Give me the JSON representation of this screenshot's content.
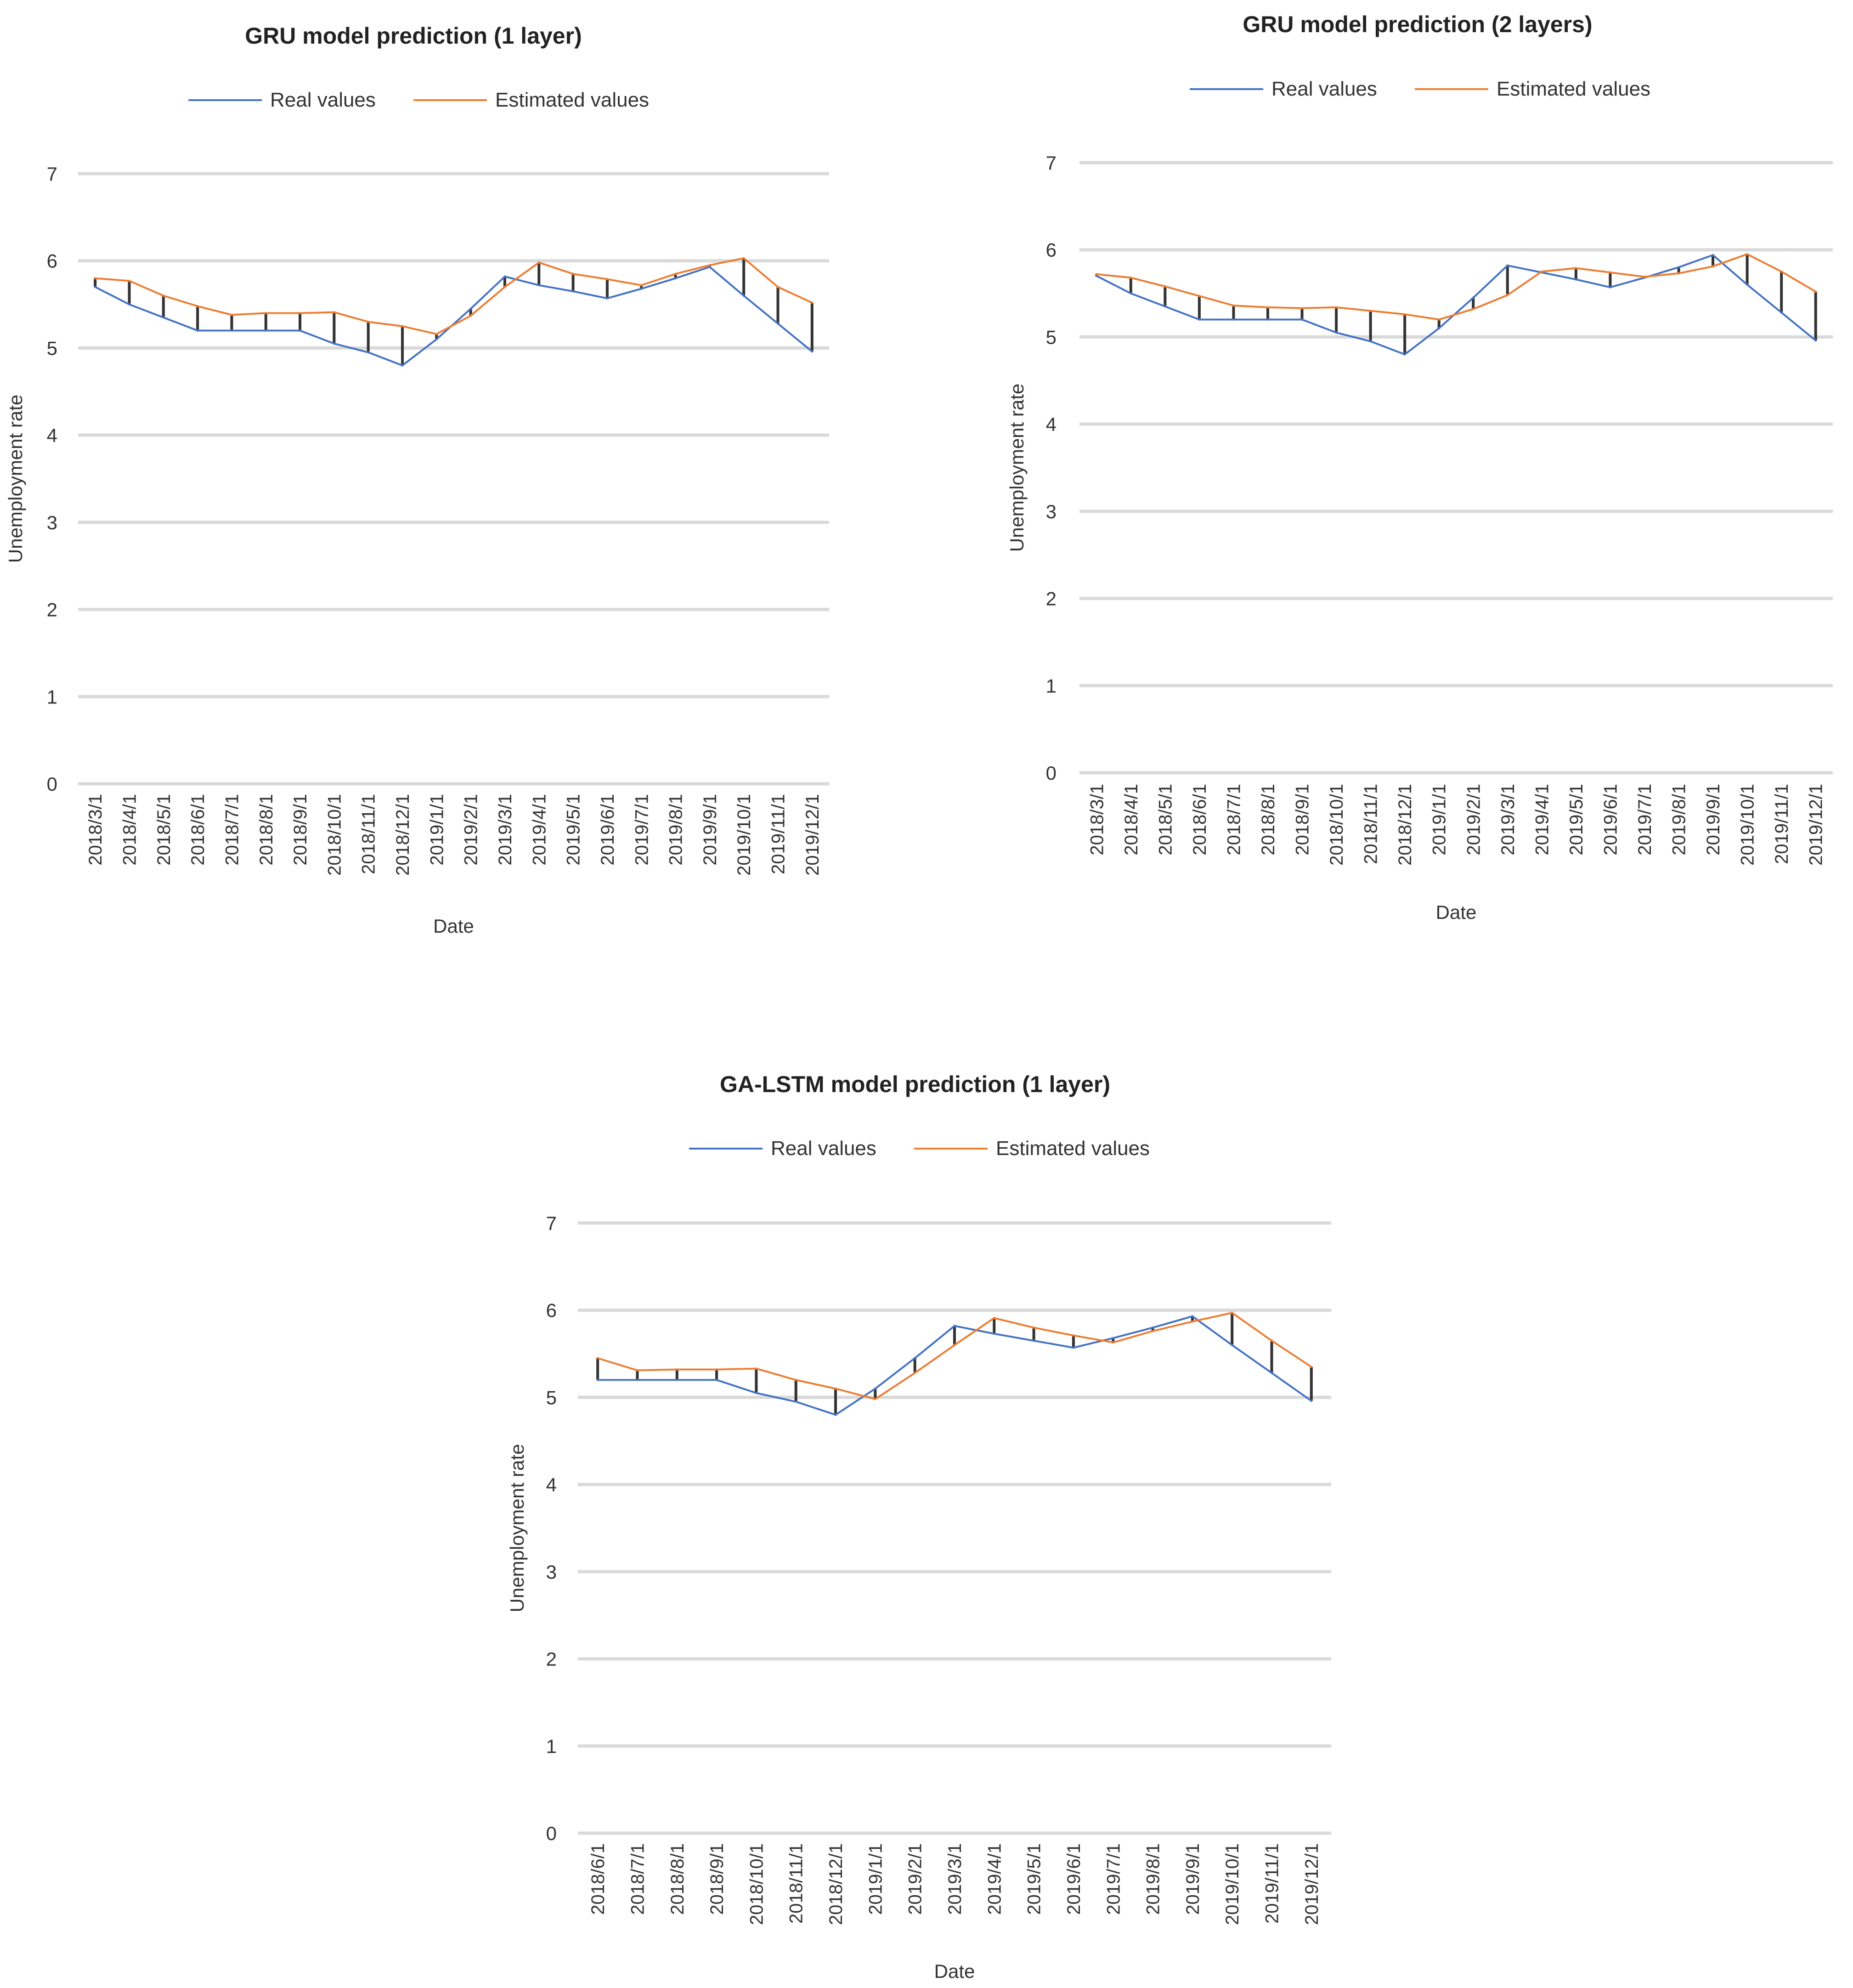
{
  "chart_data": [
    {
      "id": "gru-1-layer",
      "type": "line",
      "title": "GRU model prediction (1 layer)",
      "xlabel": "Date",
      "ylabel": "Unemployment rate",
      "ylim": [
        0,
        7
      ],
      "yticks": [
        0,
        1,
        2,
        3,
        4,
        5,
        6,
        7
      ],
      "grid": true,
      "legend_position": "top",
      "categories": [
        "2018/3/1",
        "2018/4/1",
        "2018/5/1",
        "2018/6/1",
        "2018/7/1",
        "2018/8/1",
        "2018/9/1",
        "2018/10/1",
        "2018/11/1",
        "2018/12/1",
        "2019/1/1",
        "2019/2/1",
        "2019/3/1",
        "2019/4/1",
        "2019/5/1",
        "2019/6/1",
        "2019/7/1",
        "2019/8/1",
        "2019/9/1",
        "2019/10/1",
        "2019/11/1",
        "2019/12/1"
      ],
      "series": [
        {
          "name": "Real values",
          "color": "#4472c4",
          "values": [
            5.7,
            5.5,
            5.35,
            5.2,
            5.2,
            5.2,
            5.2,
            5.05,
            4.95,
            4.8,
            5.1,
            5.45,
            5.82,
            5.72,
            5.65,
            5.57,
            5.68,
            5.8,
            5.93,
            5.6,
            5.28,
            4.96
          ]
        },
        {
          "name": "Estimated values",
          "color": "#ed7d31",
          "values": [
            5.8,
            5.77,
            5.6,
            5.48,
            5.38,
            5.4,
            5.4,
            5.41,
            5.3,
            5.25,
            5.16,
            5.37,
            5.7,
            5.98,
            5.85,
            5.79,
            5.72,
            5.85,
            5.95,
            6.03,
            5.7,
            5.52
          ]
        }
      ]
    },
    {
      "id": "gru-2-layers",
      "type": "line",
      "title": "GRU model prediction (2 layers)",
      "xlabel": "Date",
      "ylabel": "Unemployment rate",
      "ylim": [
        0,
        7
      ],
      "yticks": [
        0,
        1,
        2,
        3,
        4,
        5,
        6,
        7
      ],
      "grid": true,
      "legend_position": "top",
      "categories": [
        "2018/3/1",
        "2018/4/1",
        "2018/5/1",
        "2018/6/1",
        "2018/7/1",
        "2018/8/1",
        "2018/9/1",
        "2018/10/1",
        "2018/11/1",
        "2018/12/1",
        "2019/1/1",
        "2019/2/1",
        "2019/3/1",
        "2019/4/1",
        "2019/5/1",
        "2019/6/1",
        "2019/7/1",
        "2019/8/1",
        "2019/9/1",
        "2019/10/1",
        "2019/11/1",
        "2019/12/1"
      ],
      "series": [
        {
          "name": "Real values",
          "color": "#4472c4",
          "values": [
            5.7,
            5.5,
            5.35,
            5.2,
            5.2,
            5.2,
            5.2,
            5.05,
            4.95,
            4.8,
            5.1,
            5.45,
            5.82,
            5.74,
            5.66,
            5.57,
            5.68,
            5.8,
            5.94,
            5.6,
            5.28,
            4.96
          ]
        },
        {
          "name": "Estimated values",
          "color": "#ed7d31",
          "values": [
            5.72,
            5.68,
            5.58,
            5.47,
            5.36,
            5.34,
            5.33,
            5.34,
            5.3,
            5.26,
            5.2,
            5.32,
            5.48,
            5.75,
            5.79,
            5.74,
            5.69,
            5.73,
            5.81,
            5.95,
            5.75,
            5.52
          ]
        }
      ]
    },
    {
      "id": "ga-lstm-1-layer",
      "type": "line",
      "title": "GA-LSTM model prediction (1 layer)",
      "xlabel": "Date",
      "ylabel": "Unemployment rate",
      "ylim": [
        0,
        7
      ],
      "yticks": [
        0,
        1,
        2,
        3,
        4,
        5,
        6,
        7
      ],
      "grid": true,
      "legend_position": "top",
      "categories": [
        "2018/6/1",
        "2018/7/1",
        "2018/8/1",
        "2018/9/1",
        "2018/10/1",
        "2018/11/1",
        "2018/12/1",
        "2019/1/1",
        "2019/2/1",
        "2019/3/1",
        "2019/4/1",
        "2019/5/1",
        "2019/6/1",
        "2019/7/1",
        "2019/8/1",
        "2019/9/1",
        "2019/10/1",
        "2019/11/1",
        "2019/12/1"
      ],
      "series": [
        {
          "name": "Real values",
          "color": "#4472c4",
          "values": [
            5.2,
            5.2,
            5.2,
            5.2,
            5.05,
            4.95,
            4.8,
            5.1,
            5.45,
            5.82,
            5.73,
            5.65,
            5.57,
            5.68,
            5.8,
            5.93,
            5.6,
            5.28,
            4.96
          ]
        },
        {
          "name": "Estimated values",
          "color": "#ed7d31",
          "values": [
            5.45,
            5.31,
            5.32,
            5.32,
            5.33,
            5.2,
            5.1,
            4.98,
            5.28,
            5.6,
            5.91,
            5.8,
            5.71,
            5.63,
            5.76,
            5.87,
            5.97,
            5.65,
            5.35
          ]
        }
      ]
    }
  ]
}
